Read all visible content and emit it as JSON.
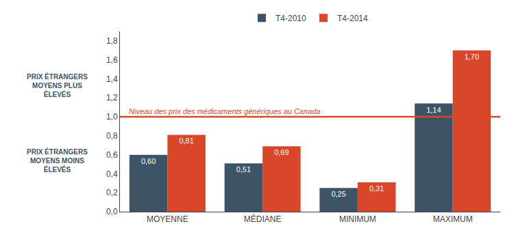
{
  "chart_data": {
    "type": "bar",
    "categories": [
      "MOYENNE",
      "MÉDIANE",
      "MINIMUM",
      "MAXIMUM"
    ],
    "series": [
      {
        "name": "T4-2010",
        "color": "#3d5466",
        "values": [
          0.6,
          0.51,
          0.25,
          1.14
        ],
        "value_labels": [
          "0,60",
          "0,51",
          "0,25",
          "1,14"
        ]
      },
      {
        "name": "T4-2014",
        "color": "#d9472b",
        "values": [
          0.81,
          0.69,
          0.31,
          1.7
        ],
        "value_labels": [
          "0,81",
          "0,69",
          "0,31",
          "1,70"
        ]
      }
    ],
    "ylim": [
      0,
      1.9
    ],
    "yticks": [
      {
        "value": 0.0,
        "label": "0,0"
      },
      {
        "value": 0.2,
        "label": "0,2"
      },
      {
        "value": 0.4,
        "label": "0,4"
      },
      {
        "value": 0.6,
        "label": "0,6"
      },
      {
        "value": 0.8,
        "label": "0,8"
      },
      {
        "value": 1.0,
        "label": "1,0"
      },
      {
        "value": 1.2,
        "label": "1,2"
      },
      {
        "value": 1.4,
        "label": "1,4"
      },
      {
        "value": 1.6,
        "label": "1,6"
      },
      {
        "value": 1.8,
        "label": "1,8"
      }
    ],
    "grid": false,
    "legend": "top",
    "data_labels": true,
    "reference_line": {
      "y": 1.0,
      "label": "Niveau des prix des médicaments génériques au Canada",
      "color": "#d9472b"
    },
    "annotations": [
      {
        "text": "PRIX ÉTRANGERS\nMOYENS PLUS\nÉLEVÉS",
        "color": "#3d5466"
      },
      {
        "text": "PRIX ÉTRANGERS\nMOYENS MOINS\nÉLEVÉS",
        "color": "#3d5466"
      }
    ]
  }
}
